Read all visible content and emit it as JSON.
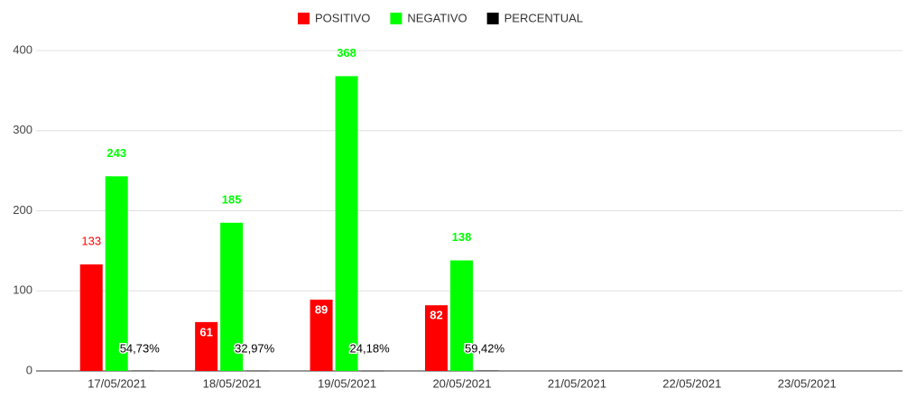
{
  "chart_data": {
    "type": "bar",
    "categories": [
      "17/05/2021",
      "18/05/2021",
      "19/05/2021",
      "20/05/2021",
      "21/05/2021",
      "22/05/2021",
      "23/05/2021"
    ],
    "series": [
      {
        "name": "POSITIVO",
        "color": "#ff0000",
        "values": [
          133,
          61,
          89,
          82,
          null,
          null,
          null
        ]
      },
      {
        "name": "NEGATIVO",
        "color": "#00ff00",
        "values": [
          243,
          185,
          368,
          138,
          null,
          null,
          null
        ]
      },
      {
        "name": "PERCENTUAL",
        "color": "#000000",
        "values": [
          0.5473,
          0.3297,
          0.2418,
          0.5942,
          null,
          null,
          null
        ],
        "value_labels": [
          "54,73%",
          "32,97%",
          "24,18%",
          "59,42%",
          null,
          null,
          null
        ]
      }
    ],
    "ylim": [
      0,
      400
    ],
    "yticks": [
      0,
      100,
      200,
      300,
      400
    ],
    "grid": true,
    "legend": "top"
  }
}
